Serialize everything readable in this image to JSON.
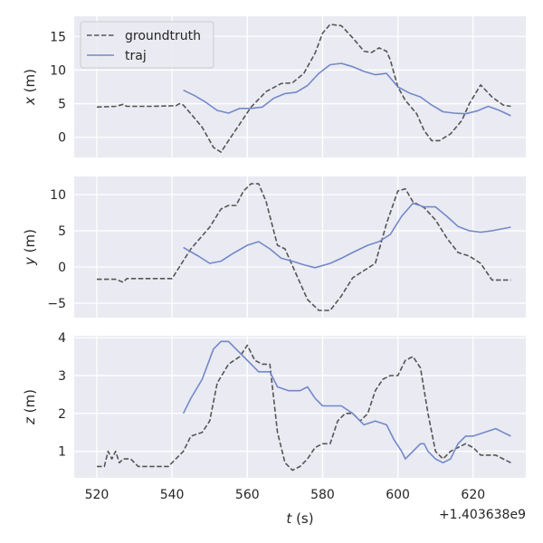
{
  "colors": {
    "background": "#ffffff",
    "axes_face": "#eaeaf2",
    "grid": "#ffffff",
    "groundtruth": "#555555",
    "traj": "#7289c8"
  },
  "chart_data": {
    "type": "line",
    "legend": {
      "placement": "top-left",
      "entries": [
        "groundtruth",
        "traj"
      ]
    },
    "shared_x": {
      "label": "t (s)",
      "label_italic_var": "t",
      "label_unit": " (s)",
      "ticks": [
        520,
        540,
        560,
        580,
        600,
        620
      ],
      "tick_labels": [
        "520",
        "540",
        "560",
        "580",
        "600",
        "620"
      ],
      "range": [
        514,
        634
      ],
      "offset_text": "+1.403638e9"
    },
    "grid": true,
    "panels": [
      {
        "ylabel_var": "x",
        "ylabel_unit": " (m)",
        "ylim": [
          -3,
          18
        ],
        "yticks": [
          0,
          5,
          10,
          15
        ],
        "ytick_labels": [
          "0",
          "5",
          "10",
          "15"
        ],
        "series": [
          {
            "name": "groundtruth",
            "style": "dashed",
            "x": [
              520,
              525,
              527,
              528,
              530,
              535,
              541,
              542,
              543,
              545,
              548,
              551,
              553,
              555,
              558,
              561,
              565,
              569,
              572,
              575,
              578,
              580,
              582,
              585,
              588,
              591,
              593,
              595,
              597,
              598,
              600,
              602,
              605,
              607,
              609,
              611,
              614,
              617,
              619,
              622,
              625,
              628,
              630
            ],
            "y": [
              4.5,
              4.6,
              4.9,
              4.6,
              4.6,
              4.6,
              4.7,
              5.0,
              4.8,
              3.5,
              1.5,
              -1.5,
              -2.2,
              -0.5,
              2.0,
              4.5,
              6.8,
              8.0,
              8.1,
              9.5,
              12.5,
              15.5,
              16.8,
              16.6,
              14.8,
              12.8,
              12.6,
              13.3,
              12.8,
              11.5,
              7.5,
              5.5,
              3.5,
              1.0,
              -0.5,
              -0.5,
              0.5,
              2.5,
              5.0,
              7.8,
              6.0,
              4.8,
              4.6
            ]
          },
          {
            "name": "traj",
            "style": "solid",
            "x": [
              543,
              546,
              549,
              552,
              555,
              558,
              561,
              564,
              567,
              570,
              573,
              576,
              579,
              582,
              585,
              588,
              591,
              594,
              597,
              600,
              603,
              606,
              609,
              612,
              615,
              618,
              621,
              624,
              627,
              630
            ],
            "y": [
              7.0,
              6.2,
              5.2,
              4.0,
              3.6,
              4.3,
              4.3,
              4.5,
              5.8,
              6.5,
              6.7,
              7.7,
              9.5,
              10.8,
              11.0,
              10.5,
              9.8,
              9.3,
              9.5,
              7.5,
              6.6,
              6.0,
              4.8,
              3.8,
              3.6,
              3.5,
              3.9,
              4.6,
              4.0,
              3.2
            ]
          }
        ]
      },
      {
        "ylabel_var": "y",
        "ylabel_unit": " (m)",
        "ylim": [
          -7,
          12.5
        ],
        "yticks": [
          -5,
          0,
          5,
          10
        ],
        "ytick_labels": [
          "−5",
          "0",
          "5",
          "10"
        ],
        "series": [
          {
            "name": "groundtruth",
            "style": "dashed",
            "x": [
              520,
              525,
              527,
              528,
              530,
              535,
              540,
              545,
              550,
              553,
              555,
              557,
              559,
              561,
              563,
              565,
              568,
              570,
              573,
              576,
              579,
              582,
              585,
              588,
              591,
              594,
              597,
              600,
              602,
              604,
              607,
              610,
              613,
              616,
              619,
              622,
              625,
              628,
              630
            ],
            "y": [
              -1.7,
              -1.7,
              -2.1,
              -1.6,
              -1.6,
              -1.6,
              -1.6,
              2.5,
              5.5,
              8.0,
              8.5,
              8.5,
              10.5,
              11.5,
              11.5,
              9.0,
              3.0,
              2.5,
              -1.0,
              -4.5,
              -6.0,
              -6.0,
              -4.0,
              -1.5,
              -0.5,
              0.5,
              6.0,
              10.5,
              10.8,
              9.0,
              8.2,
              6.5,
              4.0,
              2.0,
              1.5,
              0.5,
              -1.8,
              -1.8,
              -1.8
            ]
          },
          {
            "name": "traj",
            "style": "solid",
            "x": [
              543,
              547,
              550,
              553,
              556,
              560,
              563,
              566,
              569,
              572,
              575,
              578,
              582,
              585,
              588,
              592,
              595,
              598,
              601,
              604,
              607,
              610,
              613,
              616,
              619,
              622,
              625,
              628,
              630
            ],
            "y": [
              2.7,
              1.5,
              0.5,
              0.8,
              1.8,
              3.0,
              3.5,
              2.5,
              1.2,
              0.8,
              0.3,
              -0.1,
              0.5,
              1.2,
              2.0,
              3.0,
              3.5,
              4.5,
              7.0,
              8.8,
              8.3,
              8.3,
              7.0,
              5.6,
              5.0,
              4.8,
              5.0,
              5.3,
              5.5
            ]
          }
        ]
      },
      {
        "ylabel_var": "z",
        "ylabel_unit": " (m)",
        "ylim": [
          0.3,
          4.05
        ],
        "yticks": [
          1,
          2,
          3,
          4
        ],
        "ytick_labels": [
          "1",
          "2",
          "3",
          "4"
        ],
        "series": [
          {
            "name": "groundtruth",
            "style": "dashed",
            "x": [
              520,
              522,
              523,
              524,
              525,
              526,
              527,
              529,
              531,
              535,
              539,
              541,
              543,
              545,
              548,
              550,
              552,
              555,
              558,
              560,
              562,
              564,
              566,
              568,
              570,
              572,
              574,
              576,
              578,
              580,
              582,
              584,
              586,
              588,
              590,
              592,
              594,
              596,
              598,
              600,
              602,
              604,
              606,
              608,
              610,
              612,
              614,
              616,
              618,
              620,
              622,
              624,
              626,
              628,
              630
            ],
            "y": [
              0.6,
              0.6,
              1.0,
              0.8,
              1.0,
              0.7,
              0.8,
              0.8,
              0.6,
              0.6,
              0.6,
              0.8,
              1.0,
              1.4,
              1.5,
              1.8,
              2.8,
              3.3,
              3.5,
              3.8,
              3.4,
              3.3,
              3.3,
              1.5,
              0.7,
              0.5,
              0.6,
              0.8,
              1.1,
              1.2,
              1.2,
              1.8,
              2.0,
              2.0,
              1.8,
              2.0,
              2.6,
              2.9,
              3.0,
              3.0,
              3.4,
              3.5,
              3.2,
              2.0,
              1.0,
              0.8,
              1.0,
              1.1,
              1.2,
              1.1,
              0.9,
              0.9,
              0.9,
              0.8,
              0.7
            ]
          },
          {
            "name": "traj",
            "style": "solid",
            "x": [
              543,
              545,
              548,
              551,
              553,
              555,
              557,
              560,
              563,
              566,
              568,
              571,
              574,
              576,
              578,
              580,
              582,
              585,
              588,
              591,
              594,
              597,
              599,
              601,
              602,
              604,
              606,
              607,
              608,
              610,
              612,
              614,
              616,
              618,
              620,
              623,
              626,
              628,
              630
            ],
            "y": [
              2.0,
              2.4,
              2.9,
              3.7,
              3.9,
              3.9,
              3.7,
              3.4,
              3.1,
              3.1,
              2.7,
              2.6,
              2.6,
              2.7,
              2.4,
              2.2,
              2.2,
              2.2,
              2.0,
              1.7,
              1.8,
              1.7,
              1.3,
              1.0,
              0.8,
              1.0,
              1.2,
              1.2,
              1.0,
              0.8,
              0.7,
              0.8,
              1.2,
              1.4,
              1.4,
              1.5,
              1.6,
              1.5,
              1.4
            ]
          }
        ]
      }
    ]
  }
}
